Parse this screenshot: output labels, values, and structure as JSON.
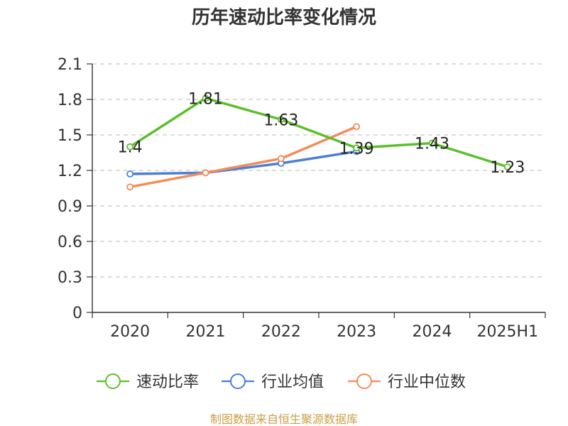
{
  "chart_data": {
    "type": "line",
    "title": "历年速动比率变化情况",
    "categories": [
      "2020",
      "2021",
      "2022",
      "2023",
      "2024",
      "2025H1"
    ],
    "ylim": [
      0,
      2.1
    ],
    "yticks": [
      "0",
      "0.3",
      "0.6",
      "0.9",
      "1.2",
      "1.5",
      "1.8",
      "2.1"
    ],
    "grid": "horizontal dashed",
    "legend_position": "bottom",
    "series": [
      {
        "name": "速动比率",
        "color": "#5cbf2a",
        "values": [
          1.4,
          1.81,
          1.63,
          1.39,
          1.43,
          1.23
        ],
        "labels": [
          "1.4",
          "1.81",
          "1.63",
          "1.39",
          "1.43",
          "1.23"
        ]
      },
      {
        "name": "行业均值",
        "color": "#4a7fd4",
        "values": [
          1.17,
          1.18,
          1.26,
          1.36,
          null,
          null
        ]
      },
      {
        "name": "行业中位数",
        "color": "#f48c5a",
        "values": [
          1.06,
          1.18,
          1.3,
          1.57,
          null,
          null
        ]
      }
    ]
  },
  "footer": {
    "source": "制图数据来自恒生聚源数据库"
  }
}
